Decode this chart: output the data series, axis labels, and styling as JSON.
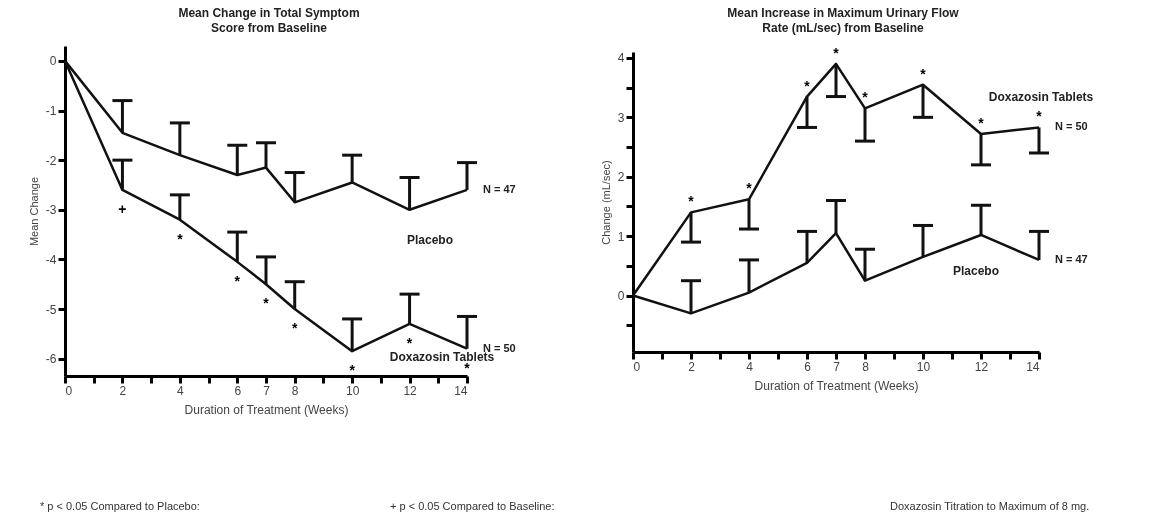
{
  "chart_data": [
    {
      "type": "line",
      "title": "Mean Change in Total Symptom Score from Baseline",
      "xlabel": "Duration of Treatment (Weeks)",
      "ylabel": "Mean Change",
      "x": [
        0,
        2,
        4,
        6,
        7,
        8,
        10,
        12,
        14
      ],
      "xlim": [
        0,
        14
      ],
      "xticks": [
        0,
        {
          "value": 1,
          "label": null
        },
        2,
        {
          "value": 3,
          "label": null
        },
        4,
        {
          "value": 5,
          "label": null
        },
        6,
        7,
        8,
        {
          "value": 9,
          "label": null
        },
        10,
        {
          "value": 11,
          "label": null
        },
        12,
        {
          "value": 13,
          "label": null
        },
        14
      ],
      "ylim": [
        -6.35,
        0.3
      ],
      "yticks": [
        -6,
        -5,
        -4,
        -3,
        -2,
        -1,
        0
      ],
      "grid": false,
      "line_style": "solid",
      "series": [
        {
          "name": "Placebo",
          "color": "#111111",
          "values": [
            0,
            -1.45,
            -1.9,
            -2.3,
            -2.15,
            -2.85,
            -2.45,
            -3.0,
            -2.6
          ],
          "errors": [
            null,
            [
              -1.45,
              -0.8
            ],
            [
              -1.9,
              -1.25
            ],
            [
              -2.3,
              -1.7
            ],
            [
              -2.15,
              -1.65
            ],
            [
              -2.85,
              -2.25
            ],
            [
              -2.45,
              -1.9
            ],
            [
              -3.0,
              -2.35
            ],
            [
              -2.6,
              -2.05
            ]
          ]
        },
        {
          "name": "Doxazosin Tablets",
          "color": "#111111",
          "values": [
            0,
            -2.6,
            -3.2,
            -4.05,
            -4.5,
            -5.0,
            -5.85,
            -5.3,
            -5.8
          ],
          "errors": [
            null,
            [
              -2.6,
              -2.0
            ],
            [
              -3.2,
              -2.7
            ],
            [
              -4.05,
              -3.45
            ],
            [
              -4.5,
              -3.95
            ],
            [
              -5.0,
              -4.45
            ],
            [
              -5.85,
              -5.2
            ],
            [
              -5.3,
              -4.7
            ],
            [
              -5.8,
              -5.15
            ]
          ]
        }
      ],
      "annotations": [
        {
          "text": "N = 47",
          "x": 14,
          "y": -2.6
        },
        {
          "text": "N = 50",
          "x": 14,
          "y": -5.8
        },
        {
          "text": "+",
          "x": 2,
          "y": -2.6
        },
        {
          "text": "*",
          "x": 4,
          "y": -3.2
        },
        {
          "text": "*",
          "x": 6,
          "y": -4.05
        },
        {
          "text": "*",
          "x": 7,
          "y": -4.5
        },
        {
          "text": "*",
          "x": 8,
          "y": -5.0
        },
        {
          "text": "*",
          "x": 10,
          "y": -5.85
        },
        {
          "text": "*",
          "x": 12,
          "y": -5.3
        },
        {
          "text": "*",
          "x": 14,
          "y": -5.8
        },
        "* p < 0.05 Compared to Placebo:",
        "+ p < 0.05 Compared to Baseline:"
      ]
    },
    {
      "type": "line",
      "title": "Mean Increase in Maximum Urinary Flow Rate (mL/sec) from Baseline",
      "xlabel": "Duration of Treatment (Weeks)",
      "ylabel": "Change (mL/sec)",
      "x": [
        0,
        2,
        4,
        6,
        7,
        8,
        10,
        12,
        14
      ],
      "xlim": [
        0,
        14
      ],
      "xticks": [
        0,
        {
          "value": 1,
          "label": null
        },
        2,
        {
          "value": 3,
          "label": null
        },
        4,
        {
          "value": 5,
          "label": null
        },
        6,
        7,
        8,
        {
          "value": 9,
          "label": null
        },
        10,
        {
          "value": 11,
          "label": null
        },
        12,
        {
          "value": 13,
          "label": null
        },
        14
      ],
      "ylim": [
        -0.95,
        4.1
      ],
      "yticks": [
        {
          "value": -0.5,
          "label": null
        },
        0,
        {
          "value": 0.5,
          "label": null
        },
        1,
        {
          "value": 1.5,
          "label": null
        },
        2,
        {
          "value": 2.5,
          "label": null
        },
        3,
        {
          "value": 3.5,
          "label": null
        },
        4
      ],
      "grid": false,
      "line_style": "solid",
      "series": [
        {
          "name": "Doxazosin Tablets",
          "color": "#111111",
          "values": [
            0,
            1.4,
            1.62,
            3.35,
            3.9,
            3.15,
            3.55,
            2.72,
            2.83
          ],
          "errors": [
            null,
            [
              0.9,
              1.4
            ],
            [
              1.12,
              1.62
            ],
            [
              2.83,
              3.35
            ],
            [
              3.35,
              3.9
            ],
            [
              2.6,
              3.15
            ],
            [
              3.0,
              3.55
            ],
            [
              2.2,
              2.72
            ],
            [
              2.4,
              2.83
            ]
          ]
        },
        {
          "name": "Placebo",
          "color": "#111111",
          "values": [
            0,
            -0.3,
            0.05,
            0.55,
            1.05,
            0.25,
            0.65,
            1.02,
            0.6
          ],
          "errors": [
            null,
            [
              -0.3,
              0.25
            ],
            [
              0.05,
              0.6
            ],
            [
              0.55,
              1.08
            ],
            [
              1.05,
              1.6
            ],
            [
              0.25,
              0.78
            ],
            [
              0.65,
              1.18
            ],
            [
              1.02,
              1.52
            ],
            [
              0.6,
              1.08
            ]
          ]
        }
      ],
      "annotations": [
        {
          "text": "N = 50",
          "x": 14,
          "y": 2.83
        },
        {
          "text": "N = 47",
          "x": 14,
          "y": 0.6
        },
        {
          "text": "*",
          "x": 2,
          "y": 1.4
        },
        {
          "text": "*",
          "x": 4,
          "y": 1.62
        },
        {
          "text": "*",
          "x": 6,
          "y": 3.35
        },
        {
          "text": "*",
          "x": 7,
          "y": 3.9
        },
        {
          "text": "*",
          "x": 8,
          "y": 3.15
        },
        {
          "text": "*",
          "x": 10,
          "y": 3.55
        },
        {
          "text": "*",
          "x": 12,
          "y": 2.72
        },
        {
          "text": "*",
          "x": 14,
          "y": 2.83
        },
        "Doxazosin Titration to Maximum of 8 mg."
      ]
    }
  ]
}
